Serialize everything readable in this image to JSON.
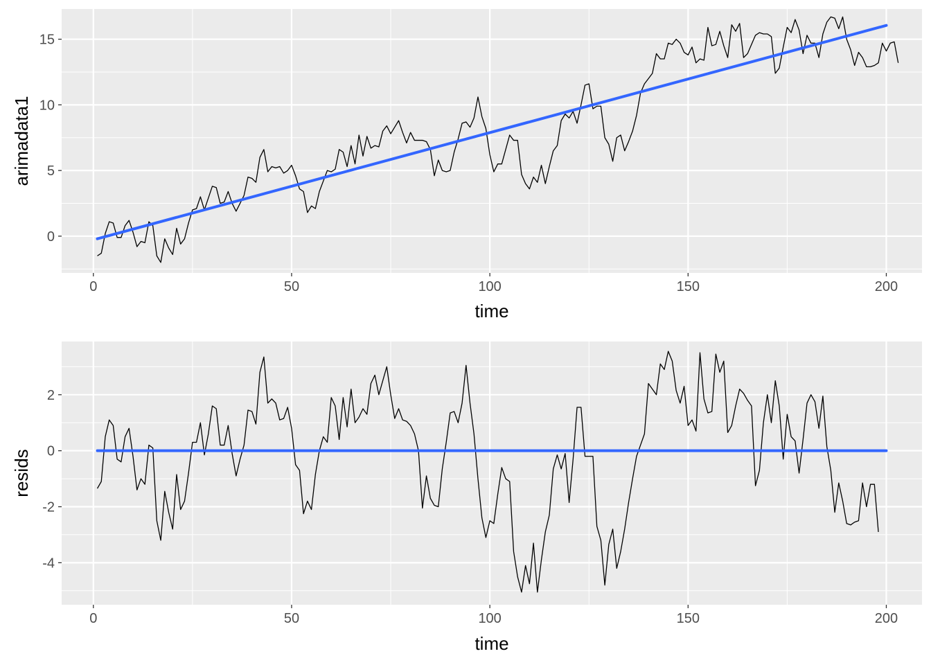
{
  "chart_data": [
    {
      "type": "line",
      "title": "",
      "xlabel": "time",
      "ylabel": "arimadata1",
      "xlim": [
        -8,
        209
      ],
      "ylim": [
        -2.8,
        17.3
      ],
      "xticks": [
        0,
        50,
        100,
        150,
        200
      ],
      "xtick_labels": [
        "0",
        "50",
        "100",
        "150",
        "200"
      ],
      "yticks": [
        0,
        5,
        10,
        15
      ],
      "ytick_labels": [
        "0",
        "5",
        "10",
        "15"
      ],
      "grid": true,
      "colors": {
        "panel": "#ebebeb",
        "grid": "#ffffff",
        "data_line": "#000000",
        "fit_line": "#3366ff"
      },
      "series": [
        {
          "role": "data",
          "x_start": 1,
          "y": [
            -1.5,
            -1.3,
            0.2,
            1.1,
            1.0,
            -0.1,
            -0.1,
            0.8,
            1.2,
            0.3,
            -0.8,
            -0.4,
            -0.5,
            1.1,
            0.8,
            -1.5,
            -2.0,
            -0.2,
            -0.9,
            -1.4,
            0.6,
            -0.6,
            -0.2,
            1.0,
            2.0,
            2.1,
            3.0,
            2.0,
            2.9,
            3.8,
            3.7,
            2.5,
            2.6,
            3.4,
            2.5,
            1.9,
            2.5,
            3.1,
            4.5,
            4.4,
            4.1,
            6.0,
            6.6,
            4.9,
            5.3,
            5.2,
            5.3,
            4.8,
            5.0,
            5.4,
            4.6,
            3.6,
            3.4,
            1.8,
            2.3,
            2.1,
            3.4,
            4.2,
            5.0,
            4.9,
            5.1,
            6.6,
            6.4,
            5.3,
            6.9,
            5.5,
            7.7,
            6.1,
            7.6,
            6.7,
            6.9,
            6.8,
            8.0,
            8.4,
            7.8,
            8.3,
            8.8,
            7.9,
            7.1,
            7.9,
            7.3,
            7.3,
            7.3,
            7.2,
            6.6,
            4.6,
            5.8,
            5.0,
            4.9,
            5.0,
            6.4,
            7.4,
            8.6,
            8.7,
            8.3,
            9.0,
            10.6,
            9.1,
            8.2,
            6.2,
            4.9,
            5.5,
            5.5,
            6.6,
            7.7,
            7.3,
            7.3,
            4.7,
            4.0,
            3.6,
            4.5,
            4.1,
            5.4,
            4.0,
            5.3,
            6.5,
            6.9,
            8.8,
            9.3,
            9.0,
            9.5,
            8.6,
            10.0,
            11.5,
            11.6,
            9.7,
            9.9,
            9.9,
            7.5,
            7.0,
            5.7,
            7.5,
            7.7,
            6.5,
            7.2,
            8.0,
            9.2,
            10.9,
            11.6,
            12.0,
            12.4,
            13.9,
            13.5,
            13.5,
            14.7,
            14.6,
            15.0,
            14.7,
            14.0,
            13.8,
            14.4,
            13.2,
            13.5,
            13.4,
            15.9,
            14.5,
            14.6,
            15.6,
            14.5,
            13.6,
            16.1,
            15.6,
            16.2,
            13.6,
            13.9,
            14.6,
            15.3,
            15.5,
            15.4,
            15.4,
            15.2,
            12.4,
            12.8,
            14.4,
            15.9,
            15.5,
            16.5,
            15.7,
            13.9,
            15.3,
            14.7,
            14.7,
            13.6,
            15.4,
            16.3,
            16.7,
            16.6,
            15.8,
            16.7,
            15.0,
            14.2,
            13.0,
            14.0,
            13.6,
            12.9,
            12.9,
            13.0,
            13.2,
            14.7,
            14.1,
            14.7,
            14.8,
            13.2
          ]
        },
        {
          "role": "linear-fit",
          "x": [
            1,
            200
          ],
          "y": [
            -0.2,
            16.05
          ]
        }
      ]
    },
    {
      "type": "line",
      "title": "",
      "xlabel": "time",
      "ylabel": "resids",
      "xlim": [
        -8,
        209
      ],
      "ylim": [
        -5.5,
        3.9
      ],
      "xticks": [
        0,
        50,
        100,
        150,
        200
      ],
      "xtick_labels": [
        "0",
        "50",
        "100",
        "150",
        "200"
      ],
      "yticks": [
        -4,
        -2,
        0,
        2
      ],
      "ytick_labels": [
        "-4",
        "-2",
        "0",
        "2"
      ],
      "grid": true,
      "colors": {
        "panel": "#ebebeb",
        "grid": "#ffffff",
        "data_line": "#000000",
        "fit_line": "#3366ff"
      },
      "series": [
        {
          "role": "data",
          "x_start": 1,
          "y": [
            -1.35,
            -1.1,
            0.5,
            1.1,
            0.9,
            -0.3,
            -0.4,
            0.5,
            0.8,
            -0.2,
            -1.4,
            -1.0,
            -1.2,
            0.2,
            0.1,
            -2.5,
            -3.2,
            -1.45,
            -2.2,
            -2.8,
            -0.85,
            -2.1,
            -1.8,
            -0.8,
            0.3,
            0.3,
            1.0,
            -0.15,
            0.6,
            1.6,
            1.5,
            0.2,
            0.2,
            0.9,
            -0.1,
            -0.9,
            -0.3,
            0.2,
            1.45,
            1.4,
            0.95,
            2.8,
            3.35,
            1.7,
            1.85,
            1.7,
            1.1,
            1.15,
            1.55,
            0.8,
            -0.5,
            -0.7,
            -2.25,
            -1.8,
            -2.1,
            -0.85,
            0.0,
            0.5,
            0.3,
            1.9,
            1.6,
            0.4,
            1.9,
            0.85,
            2.2,
            1.0,
            1.2,
            1.5,
            1.3,
            2.4,
            2.7,
            2.0,
            2.5,
            3.0,
            2.0,
            1.15,
            1.5,
            1.1,
            1.05,
            0.9,
            0.6,
            0.0,
            -2.05,
            -0.9,
            -1.7,
            -1.95,
            -2.0,
            -0.65,
            0.3,
            1.35,
            1.4,
            1.0,
            1.7,
            3.05,
            1.7,
            0.6,
            -1.0,
            -2.4,
            -3.1,
            -2.5,
            -2.6,
            -1.55,
            -0.6,
            -1.0,
            -1.1,
            -3.6,
            -4.5,
            -5.05,
            -4.1,
            -4.75,
            -3.3,
            -5.05,
            -3.9,
            -2.9,
            -2.3,
            -0.65,
            -0.15,
            -0.65,
            -0.1,
            -1.85,
            -0.3,
            1.55,
            1.55,
            -0.2,
            -0.2,
            -0.2,
            -2.7,
            -3.2,
            -4.8,
            -3.35,
            -2.8,
            -4.2,
            -3.6,
            -2.8,
            -1.85,
            -1.0,
            -0.2,
            0.2,
            0.6,
            2.4,
            2.2,
            2.0,
            3.1,
            2.9,
            3.55,
            3.2,
            2.15,
            1.7,
            2.3,
            0.9,
            1.1,
            0.7,
            3.5,
            1.85,
            1.35,
            1.4,
            3.45,
            2.8,
            3.2,
            0.65,
            0.9,
            1.6,
            2.2,
            2.05,
            1.8,
            1.6,
            -1.25,
            -0.7,
            1.0,
            2.0,
            1.0,
            2.5,
            1.6,
            -0.3,
            1.3,
            0.5,
            0.35,
            -0.8,
            0.4,
            1.7,
            2.0,
            1.75,
            0.8,
            1.95,
            0.15,
            -0.7,
            -2.2,
            -1.15,
            -1.8,
            -2.6,
            -2.65,
            -2.55,
            -2.5,
            -1.15,
            -2.0,
            -1.2,
            -1.2,
            -2.9
          ]
        },
        {
          "role": "linear-fit",
          "x": [
            1,
            200
          ],
          "y": [
            0,
            0
          ]
        }
      ]
    }
  ]
}
